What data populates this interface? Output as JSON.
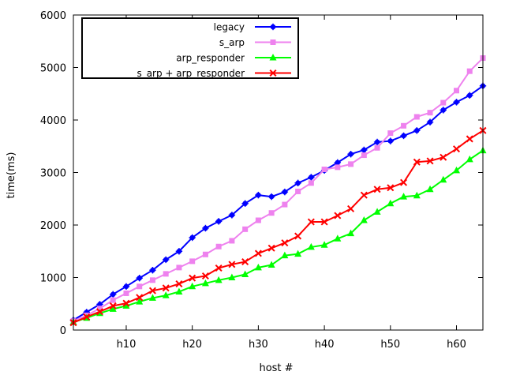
{
  "chart_data": {
    "type": "line",
    "title": "",
    "xlabel": "host #",
    "ylabel": "time(ms)",
    "x": [
      2,
      4,
      6,
      8,
      10,
      12,
      14,
      16,
      18,
      20,
      22,
      24,
      26,
      28,
      30,
      32,
      34,
      36,
      38,
      40,
      42,
      44,
      46,
      48,
      50,
      52,
      54,
      56,
      58,
      60,
      62,
      64
    ],
    "xlim": [
      2,
      64
    ],
    "ylim": [
      0,
      6000
    ],
    "x_ticks": [
      {
        "value": 10,
        "label": "h10"
      },
      {
        "value": 20,
        "label": "h20"
      },
      {
        "value": 30,
        "label": "h30"
      },
      {
        "value": 40,
        "label": "h40"
      },
      {
        "value": 50,
        "label": "h50"
      },
      {
        "value": 60,
        "label": "h60"
      }
    ],
    "y_ticks": [
      {
        "value": 0,
        "label": "0"
      },
      {
        "value": 1000,
        "label": "1000"
      },
      {
        "value": 2000,
        "label": "2000"
      },
      {
        "value": 3000,
        "label": "3000"
      },
      {
        "value": 4000,
        "label": "4000"
      },
      {
        "value": 5000,
        "label": "5000"
      },
      {
        "value": 6000,
        "label": "6000"
      }
    ],
    "grid": false,
    "legend_position": "top-left",
    "series": [
      {
        "name": "legacy",
        "color": "#0000ff",
        "marker": "star",
        "values": [
          190,
          340,
          490,
          680,
          830,
          990,
          1140,
          1340,
          1500,
          1760,
          1940,
          2070,
          2190,
          2410,
          2570,
          2540,
          2630,
          2800,
          2910,
          3040,
          3190,
          3350,
          3430,
          3580,
          3600,
          3700,
          3800,
          3960,
          4190,
          4340,
          4470,
          4650
        ]
      },
      {
        "name": "s_arp",
        "color": "#ee82ee",
        "marker": "square",
        "values": [
          170,
          280,
          410,
          570,
          700,
          830,
          950,
          1070,
          1190,
          1310,
          1440,
          1590,
          1700,
          1920,
          2090,
          2230,
          2390,
          2640,
          2800,
          3060,
          3100,
          3160,
          3330,
          3470,
          3750,
          3890,
          4060,
          4140,
          4330,
          4560,
          4930,
          5180
        ]
      },
      {
        "name": "arp_responder",
        "color": "#00ff00",
        "marker": "triangle",
        "values": [
          150,
          230,
          320,
          400,
          460,
          540,
          610,
          660,
          730,
          830,
          890,
          950,
          1000,
          1060,
          1190,
          1240,
          1420,
          1450,
          1580,
          1620,
          1740,
          1840,
          2090,
          2250,
          2410,
          2540,
          2560,
          2680,
          2860,
          3040,
          3250,
          3420
        ]
      },
      {
        "name": "s_arp + arp_responder",
        "color": "#ff0000",
        "marker": "cross",
        "values": [
          140,
          250,
          350,
          460,
          510,
          620,
          750,
          800,
          880,
          990,
          1030,
          1180,
          1250,
          1300,
          1460,
          1560,
          1660,
          1790,
          2060,
          2060,
          2180,
          2310,
          2570,
          2680,
          2710,
          2810,
          3200,
          3220,
          3290,
          3450,
          3640,
          3800
        ]
      }
    ]
  }
}
